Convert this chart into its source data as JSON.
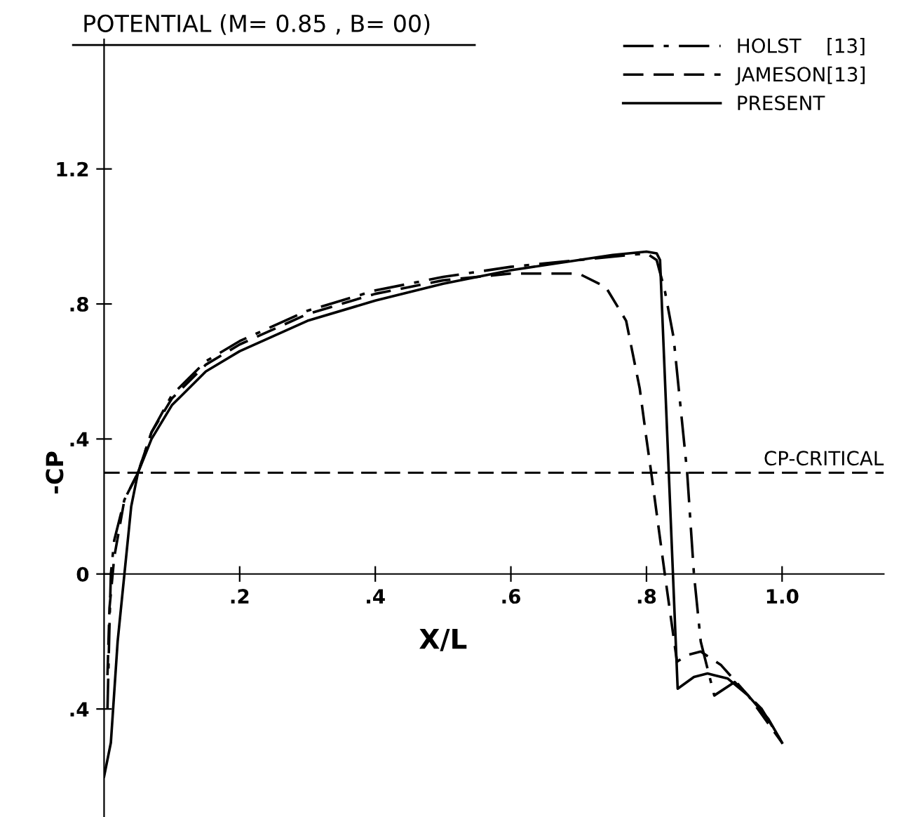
{
  "chart_data": {
    "type": "line",
    "title": "POTENTIAL (M= 0.85 , B= 00)",
    "xlabel": "X/L",
    "ylabel": "-CP",
    "xlim": [
      0,
      1.15
    ],
    "ylim": [
      -0.72,
      1.64
    ],
    "xticks": [
      {
        "value": 0.2,
        "label": ".2"
      },
      {
        "value": 0.4,
        "label": ".4"
      },
      {
        "value": 0.6,
        "label": ".6"
      },
      {
        "value": 0.8,
        "label": ".8"
      },
      {
        "value": 1.0,
        "label": "1.0"
      }
    ],
    "yticks": [
      {
        "value": -0.4,
        "label": ".4"
      },
      0,
      {
        "value": 0.4,
        "label": ".4"
      },
      {
        "value": 0.8,
        "label": ".8"
      },
      {
        "value": 1.2,
        "label": "1.2"
      }
    ],
    "grid": false,
    "legend": "top right",
    "marker": "none",
    "ref_lines": [
      {
        "axis": "y",
        "value": 0.3,
        "label": "CP-CRITICAL",
        "color": "#000000",
        "line_style": "dashed"
      }
    ],
    "series": [
      {
        "name": "HOLST    [13]",
        "color": "#000000",
        "line_style": "dashdot",
        "x": [
          0.005,
          0.008,
          0.01,
          0.015,
          0.03,
          0.05,
          0.07,
          0.1,
          0.15,
          0.2,
          0.3,
          0.4,
          0.5,
          0.6,
          0.7,
          0.8,
          0.815,
          0.827,
          0.84,
          0.85,
          0.86,
          0.87,
          0.88,
          0.9,
          0.93,
          0.97,
          1.0
        ],
        "values": [
          -0.4,
          -0.15,
          0.0,
          0.1,
          0.22,
          0.3,
          0.42,
          0.53,
          0.63,
          0.69,
          0.78,
          0.84,
          0.88,
          0.91,
          0.93,
          0.95,
          0.93,
          0.84,
          0.7,
          0.5,
          0.3,
          0.0,
          -0.2,
          -0.36,
          -0.32,
          -0.4,
          -0.5
        ]
      },
      {
        "name": "JAMESON[13]",
        "color": "#000000",
        "line_style": "dashed",
        "x": [
          0.005,
          0.008,
          0.015,
          0.03,
          0.05,
          0.07,
          0.1,
          0.15,
          0.2,
          0.3,
          0.4,
          0.5,
          0.6,
          0.7,
          0.74,
          0.77,
          0.79,
          0.8,
          0.807,
          0.827,
          0.845,
          0.86,
          0.88,
          0.91,
          0.95,
          1.0
        ],
        "values": [
          -0.3,
          -0.1,
          0.05,
          0.22,
          0.3,
          0.42,
          0.52,
          0.62,
          0.68,
          0.77,
          0.83,
          0.87,
          0.89,
          0.89,
          0.85,
          0.75,
          0.55,
          0.4,
          0.3,
          0.0,
          -0.26,
          -0.24,
          -0.23,
          -0.27,
          -0.36,
          -0.5
        ]
      },
      {
        "name": "PRESENT",
        "color": "#000000",
        "line_style": "solid",
        "x": [
          0.0,
          0.01,
          0.02,
          0.03,
          0.04,
          0.05,
          0.07,
          0.1,
          0.15,
          0.2,
          0.3,
          0.4,
          0.5,
          0.6,
          0.7,
          0.75,
          0.8,
          0.815,
          0.82,
          0.846,
          0.87,
          0.89,
          0.92,
          0.95,
          0.98,
          1.0
        ],
        "values": [
          -0.6,
          -0.5,
          -0.2,
          0.0,
          0.2,
          0.3,
          0.4,
          0.5,
          0.6,
          0.66,
          0.75,
          0.81,
          0.86,
          0.9,
          0.93,
          0.945,
          0.955,
          0.95,
          0.93,
          -0.34,
          -0.305,
          -0.295,
          -0.31,
          -0.36,
          -0.43,
          -0.5
        ]
      }
    ]
  }
}
